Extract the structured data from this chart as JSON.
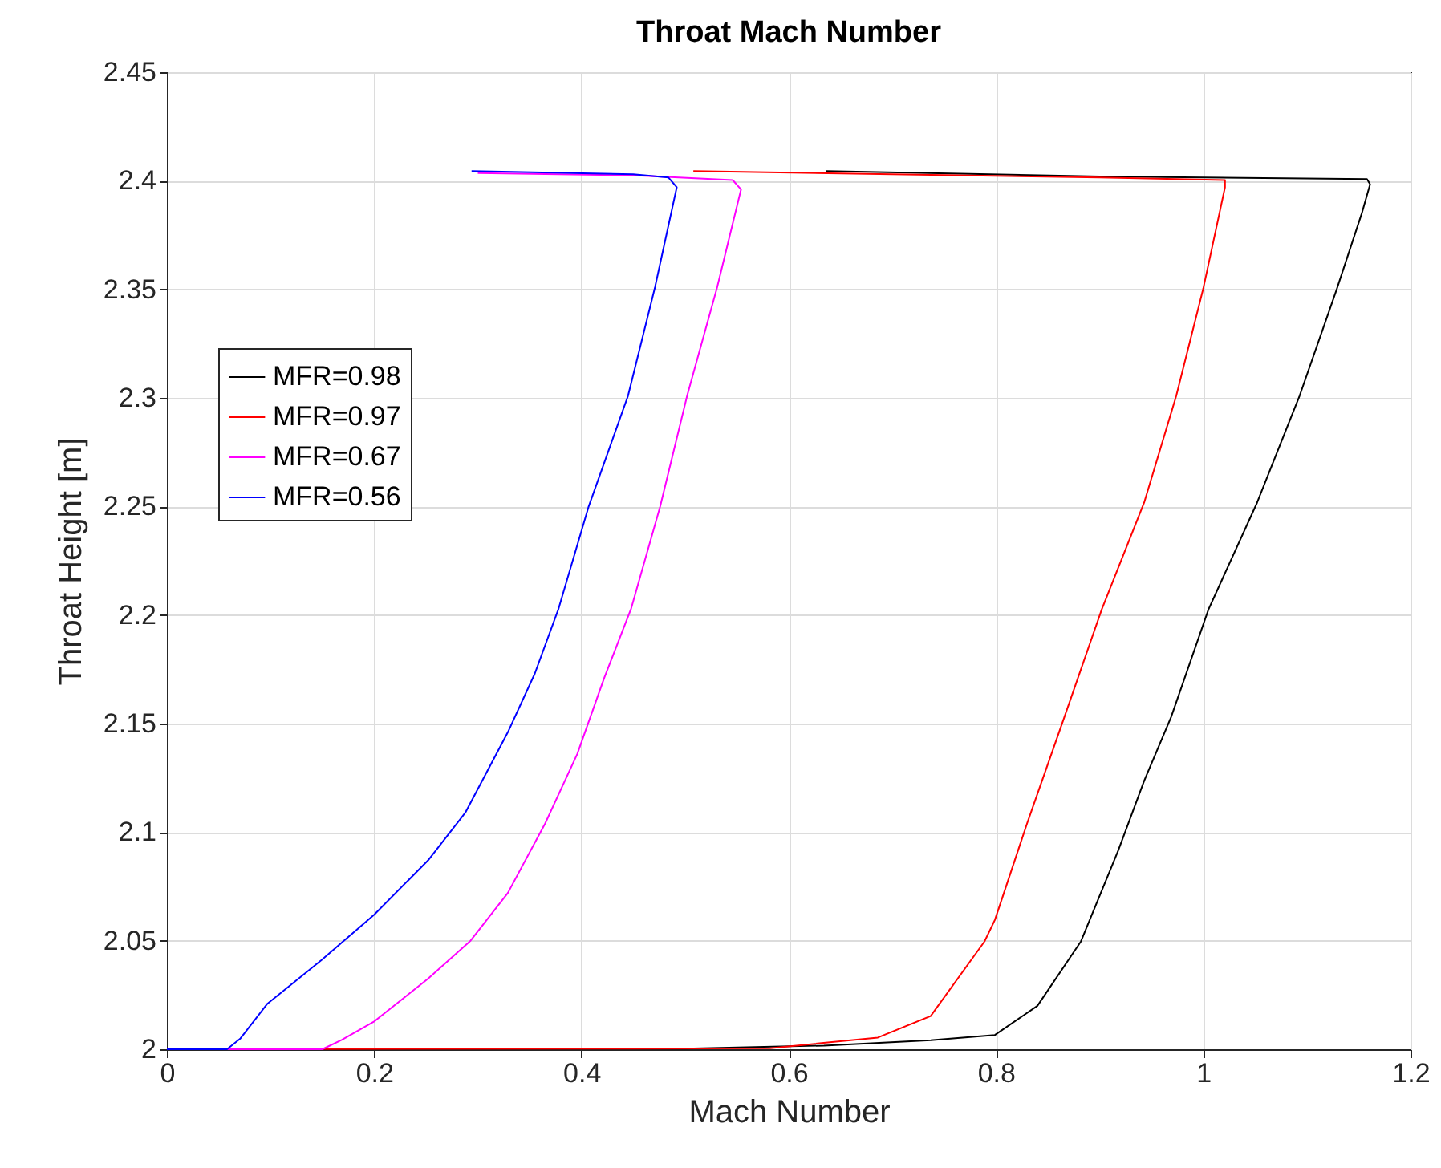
{
  "chart_data": {
    "type": "line",
    "title": "Throat Mach Number",
    "xlabel": "Mach Number",
    "ylabel": "Throat Height [m]",
    "xlim": [
      0,
      1.2
    ],
    "xticks": [
      0,
      0.2,
      0.4,
      0.6,
      0.8,
      1,
      1.2
    ],
    "ylim": [
      2,
      2.45
    ],
    "yticks": [
      2,
      2.05,
      2.1,
      2.15,
      2.2,
      2.25,
      2.3,
      2.35,
      2.4,
      2.45
    ],
    "grid": true,
    "legend": "top left",
    "line_style": "solid",
    "marker": "none",
    "series": [
      {
        "name": "MFR=0.98",
        "color": "#000000",
        "x": [
          0,
          0.5,
          0.634,
          0.737,
          0.799,
          0.84,
          0.882,
          0.918,
          0.943,
          0.969,
          1.005,
          1.052,
          1.093,
          1.129,
          1.153,
          1.161,
          1.158,
          0.9,
          0.636
        ],
        "values": [
          2,
          2.0003,
          2.0017,
          2.0042,
          2.0066,
          2.02,
          2.0497,
          2.0916,
          2.1236,
          2.153,
          2.2025,
          2.2518,
          2.301,
          2.3503,
          2.385,
          2.3984,
          2.4008,
          2.402,
          2.4045
        ]
      },
      {
        "name": "MFR=0.97",
        "color": "#ff0000",
        "x": [
          0,
          0.45,
          0.582,
          0.686,
          0.737,
          0.789,
          0.799,
          0.83,
          0.866,
          0.902,
          0.943,
          0.974,
          1,
          1.021,
          1.021,
          0.9,
          0.7,
          0.508
        ],
        "values": [
          2,
          2.0003,
          2.0005,
          2.0054,
          2.0153,
          2.0497,
          2.0596,
          2.104,
          2.153,
          2.2025,
          2.2518,
          2.301,
          2.3503,
          2.397,
          2.4003,
          2.4015,
          2.403,
          2.4045
        ]
      },
      {
        "name": "MFR=0.67",
        "color": "#ff00ff",
        "x": [
          0,
          0.15,
          0.169,
          0.2,
          0.252,
          0.293,
          0.329,
          0.365,
          0.396,
          0.422,
          0.448,
          0.476,
          0.502,
          0.531,
          0.554,
          0.546,
          0.45,
          0.3
        ],
        "values": [
          2,
          2,
          2.0044,
          2.0128,
          2.0325,
          2.05,
          2.072,
          2.104,
          2.136,
          2.171,
          2.203,
          2.25,
          2.301,
          2.351,
          2.396,
          2.4003,
          2.4025,
          2.4035
        ]
      },
      {
        "name": "MFR=0.56",
        "color": "#0000ff",
        "x": [
          0,
          0.058,
          0.071,
          0.097,
          0.149,
          0.2,
          0.252,
          0.288,
          0.329,
          0.355,
          0.378,
          0.407,
          0.445,
          0.471,
          0.492,
          0.484,
          0.45,
          0.294
        ],
        "values": [
          2,
          2,
          2.005,
          2.021,
          2.041,
          2.062,
          2.087,
          2.109,
          2.146,
          2.173,
          2.203,
          2.25,
          2.301,
          2.351,
          2.397,
          2.4015,
          2.403,
          2.4045
        ]
      }
    ]
  }
}
